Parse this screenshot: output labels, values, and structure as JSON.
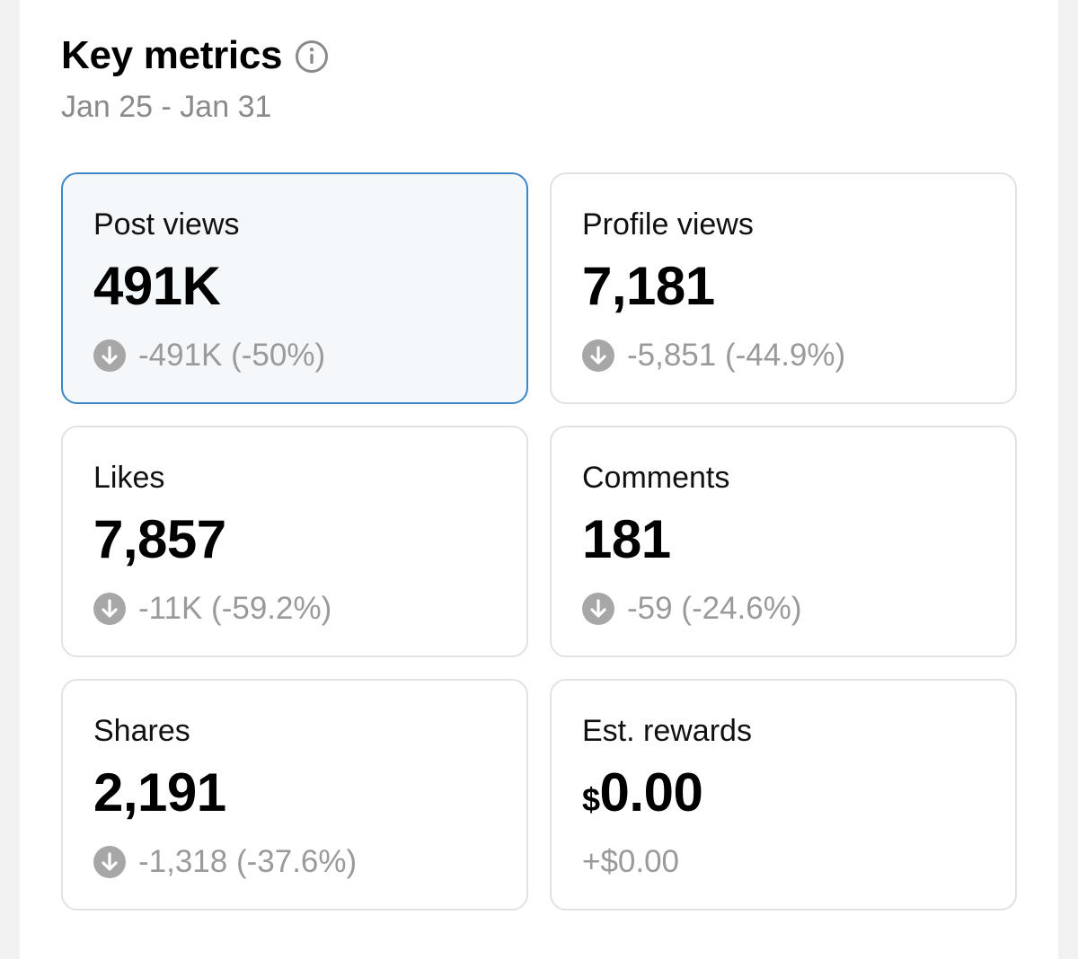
{
  "header": {
    "title": "Key metrics",
    "info_icon": "info-circle-icon",
    "date_range": "Jan 25 - Jan 31"
  },
  "colors": {
    "selected_border": "#3d86c6",
    "selected_background": "#f4f8fb",
    "muted_text": "#9a9a9a",
    "down_icon": "#a7a7a7"
  },
  "metrics": [
    {
      "label": "Post views",
      "value": "491K",
      "change": "-491K (-50%)",
      "trend_icon": "arrow-down-circle-icon",
      "selected": true
    },
    {
      "label": "Profile views",
      "value": "7,181",
      "change": "-5,851 (-44.9%)",
      "trend_icon": "arrow-down-circle-icon",
      "selected": false
    },
    {
      "label": "Likes",
      "value": "7,857",
      "change": "-11K (-59.2%)",
      "trend_icon": "arrow-down-circle-icon",
      "selected": false
    },
    {
      "label": "Comments",
      "value": "181",
      "change": "-59 (-24.6%)",
      "trend_icon": "arrow-down-circle-icon",
      "selected": false
    },
    {
      "label": "Shares",
      "value": "2,191",
      "change": "-1,318 (-37.6%)",
      "trend_icon": "arrow-down-circle-icon",
      "selected": false
    },
    {
      "label": "Est. rewards",
      "currency_symbol": "$",
      "value": "0.00",
      "change": "+$0.00",
      "selected": false
    }
  ]
}
